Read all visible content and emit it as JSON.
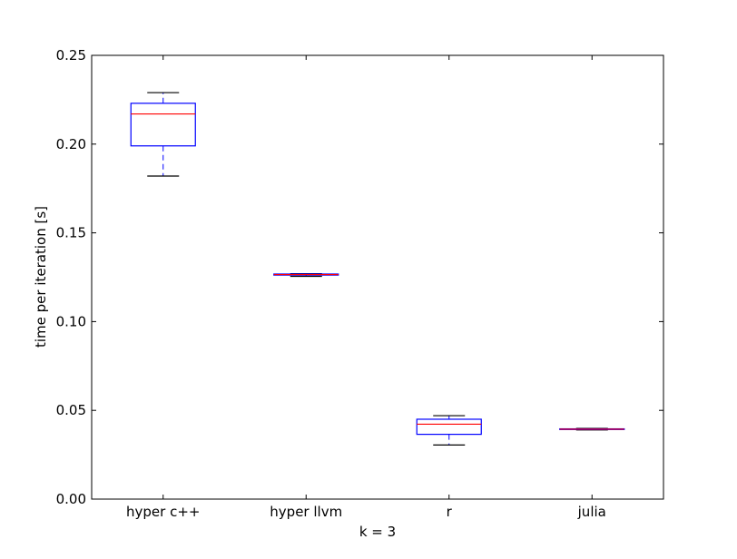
{
  "chart_data": {
    "type": "box",
    "title": "",
    "xlabel": "k = 3",
    "ylabel": "time per iteration [s]",
    "ylim": [
      0.0,
      0.25
    ],
    "yticks": [
      "0.00",
      "0.05",
      "0.10",
      "0.15",
      "0.20",
      "0.25"
    ],
    "categories": [
      "hyper c++",
      "hyper llvm",
      "r",
      "julia"
    ],
    "boxes": [
      {
        "category": "hyper c++",
        "whisker_low": 0.182,
        "q1": 0.199,
        "median": 0.217,
        "q3": 0.223,
        "whisker_high": 0.229
      },
      {
        "category": "hyper llvm",
        "whisker_low": 0.1255,
        "q1": 0.1262,
        "median": 0.1265,
        "q3": 0.1268,
        "whisker_high": 0.127
      },
      {
        "category": "r",
        "whisker_low": 0.0305,
        "q1": 0.0365,
        "median": 0.0422,
        "q3": 0.045,
        "whisker_high": 0.047
      },
      {
        "category": "julia",
        "whisker_low": 0.039,
        "q1": 0.0392,
        "median": 0.0394,
        "q3": 0.0396,
        "whisker_high": 0.0398
      }
    ],
    "grid": false,
    "colors": {
      "box": "#0000ff",
      "median": "#ff0000",
      "whisker_cap": "#000000",
      "axes": "#000000"
    }
  }
}
